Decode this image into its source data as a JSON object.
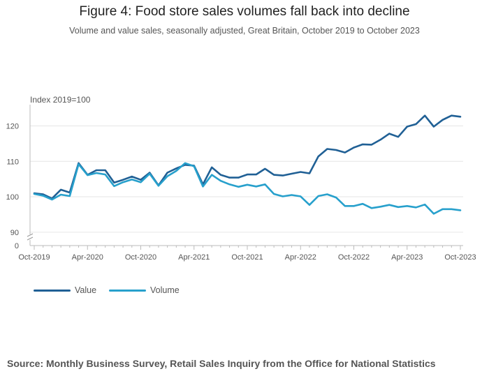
{
  "title": "Figure 4: Food store sales volumes fall back into decline",
  "subtitle": "Volume and value sales, seasonally adjusted, Great Britain, October 2019 to October 2023",
  "source": "Source: Monthly Business Survey, Retail Sales Inquiry from the Office for National Statistics",
  "chart_data": {
    "type": "line",
    "ylabel": "Index 2019=100",
    "xlabel": "",
    "ylim": [
      88,
      126
    ],
    "y_ticks": [
      90,
      100,
      110,
      120
    ],
    "y_zero_label": "0",
    "x_tick_labels": [
      "Oct-2019",
      "Apr-2020",
      "Oct-2020",
      "Apr-2021",
      "Oct-2021",
      "Apr-2022",
      "Oct-2022",
      "Apr-2023",
      "Oct-2023"
    ],
    "x_tick_every": 6,
    "months": 49,
    "series": [
      {
        "name": "Value",
        "color": "#206095",
        "values": [
          101.0,
          100.7,
          99.5,
          102.0,
          101.2,
          109.5,
          106.2,
          107.5,
          107.5,
          104.0,
          104.8,
          105.7,
          104.8,
          106.8,
          103.2,
          106.8,
          108.0,
          109.0,
          108.8,
          103.5,
          108.3,
          106.2,
          105.4,
          105.4,
          106.3,
          106.3,
          107.9,
          106.2,
          106.0,
          106.5,
          107.0,
          106.6,
          111.4,
          113.5,
          113.2,
          112.5,
          113.9,
          114.8,
          114.7,
          116.1,
          117.8,
          116.9,
          119.8,
          120.5,
          122.9,
          119.8,
          121.7,
          122.9,
          122.6
        ]
      },
      {
        "name": "Volume",
        "color": "#27a0cc",
        "values": [
          100.8,
          100.3,
          99.2,
          100.6,
          100.2,
          109.2,
          106.1,
          106.7,
          106.3,
          103.0,
          104.1,
          104.9,
          104.1,
          106.5,
          103.1,
          105.8,
          107.3,
          109.5,
          108.6,
          102.9,
          106.2,
          104.5,
          103.5,
          102.8,
          103.4,
          102.9,
          103.5,
          100.8,
          100.1,
          100.5,
          100.1,
          97.7,
          100.2,
          100.7,
          99.8,
          97.4,
          97.4,
          98.0,
          96.8,
          97.2,
          97.7,
          97.1,
          97.4,
          97.0,
          97.8,
          95.2,
          96.5,
          96.5,
          96.2
        ]
      }
    ]
  }
}
